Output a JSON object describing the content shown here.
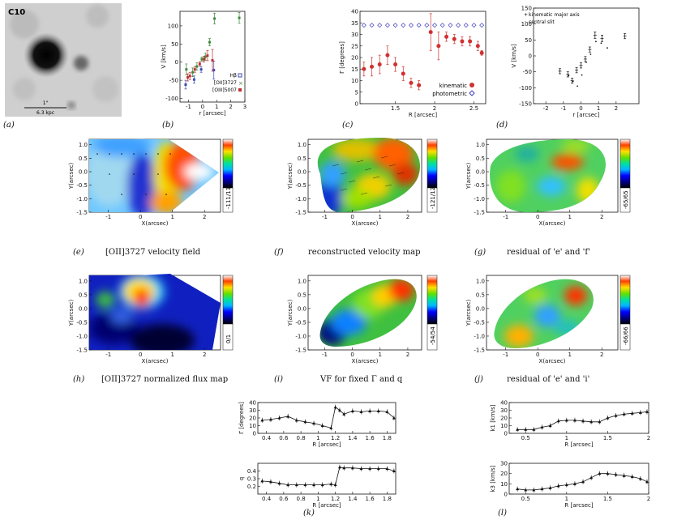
{
  "panel_a": {
    "object_label": "C10",
    "scale_top": "1\"",
    "scale_bottom": "6.3 kpc",
    "caption": "(a)"
  },
  "captions": {
    "b": "(b)",
    "c": "(c)",
    "d": "(d)",
    "e": "(e)",
    "f": "(f)",
    "g": "(g)",
    "h": "(h)",
    "i": "(i)",
    "j": "(j)",
    "k": "(k)",
    "l": "(l)"
  },
  "titles": {
    "e": "[OII]3727 velocity field",
    "f": "reconstructed velocity map",
    "g": "residual of 'e' and 'f'",
    "h": "[OII]3727 normalized flux map",
    "i": "VF for fixed Γ and q",
    "j": "residual of 'e' and 'i'"
  },
  "colorbars": {
    "e": "-111/111",
    "f": "-121/121",
    "g": "-65/65",
    "h": "0/1",
    "i": "-54/54",
    "j": "-66/66"
  },
  "map_axes": {
    "xlabel": "X(arcsec)",
    "ylabel": "Y(arcsec)",
    "xticks": [
      "-1",
      "0",
      "1",
      "2"
    ],
    "yticks": [
      "1.0",
      "0.5",
      "0.0",
      "-0.5",
      "-1.0",
      "-1.5"
    ]
  },
  "chart_data": [
    {
      "id": "b",
      "type": "scatter",
      "xlabel": "r [arcsec]",
      "ylabel": "V [km/s]",
      "xlim": [
        -1.6,
        3.0
      ],
      "ylim": [
        -110,
        140
      ],
      "xticks": [
        -1,
        0,
        1,
        2,
        3
      ],
      "yticks": [
        -100,
        -50,
        0,
        50,
        100
      ],
      "legend_position": "bottom-right",
      "series": [
        {
          "name": "Hβ",
          "color": "#3b4bb0",
          "points": [
            [
              -1.2,
              -62,
              12
            ],
            [
              -0.6,
              -48,
              10
            ],
            [
              -0.1,
              -20,
              8
            ],
            [
              0.8,
              -22,
              25
            ]
          ]
        },
        {
          "name": "[OII]3727",
          "color": "#3d8a3d",
          "points": [
            [
              -1.15,
              -20,
              15
            ],
            [
              -0.7,
              -28,
              12
            ],
            [
              -0.4,
              -12,
              10
            ],
            [
              -0.05,
              8,
              6
            ],
            [
              0.2,
              15,
              10
            ],
            [
              0.5,
              55,
              10
            ],
            [
              0.85,
              120,
              15
            ],
            [
              2.6,
              122,
              15
            ]
          ]
        },
        {
          "name": "[OIII]5007",
          "color": "#c03030",
          "points": [
            [
              -1.05,
              -42,
              10
            ],
            [
              -0.9,
              -38,
              10
            ],
            [
              -0.55,
              -20,
              8
            ],
            [
              -0.2,
              -5,
              6
            ],
            [
              0.1,
              8,
              8
            ],
            [
              0.35,
              18,
              14
            ],
            [
              0.7,
              5,
              30
            ]
          ]
        }
      ]
    },
    {
      "id": "c",
      "type": "scatter",
      "xlabel": "R [arcsec]",
      "ylabel": "Γ [degrees]",
      "xlim": [
        1.05,
        2.65
      ],
      "ylim": [
        0,
        40
      ],
      "xticks": [
        1.5,
        2.0,
        2.5
      ],
      "yticks": [
        0,
        5,
        10,
        15,
        20,
        25,
        30,
        35,
        40
      ],
      "legend_position": "bottom-right",
      "series": [
        {
          "name": "kinematic",
          "color": "#d03030",
          "points": [
            [
              1.1,
              15,
              3
            ],
            [
              1.2,
              16,
              4
            ],
            [
              1.3,
              17,
              4
            ],
            [
              1.4,
              21,
              4
            ],
            [
              1.5,
              17,
              3
            ],
            [
              1.6,
              13,
              3
            ],
            [
              1.7,
              9,
              2
            ],
            [
              1.8,
              8,
              2
            ],
            [
              1.95,
              31,
              8
            ],
            [
              2.05,
              25,
              6
            ],
            [
              2.15,
              29,
              2
            ],
            [
              2.25,
              28,
              2
            ],
            [
              2.35,
              27,
              2
            ],
            [
              2.45,
              27,
              2
            ],
            [
              2.55,
              25,
              2
            ],
            [
              2.6,
              22,
              1
            ]
          ]
        },
        {
          "name": "photometric",
          "color": "#4040c0",
          "x": [
            1.1,
            1.2,
            1.3,
            1.4,
            1.5,
            1.6,
            1.7,
            1.8,
            1.9,
            2.0,
            2.1,
            2.2,
            2.3,
            2.4,
            2.5,
            2.6
          ],
          "y": [
            34,
            34,
            34,
            34,
            34,
            34,
            34,
            34,
            34,
            34,
            34,
            34,
            34,
            34,
            34,
            34
          ]
        }
      ]
    },
    {
      "id": "d",
      "type": "scatter",
      "xlabel": "r [arcsec]",
      "ylabel": "V [km/s]",
      "xlim": [
        -2.7,
        3.3
      ],
      "ylim": [
        -150,
        150
      ],
      "xticks": [
        -2,
        -1,
        0,
        1,
        2
      ],
      "yticks": [
        -150,
        -100,
        -50,
        0,
        50,
        100,
        150
      ],
      "legend_position": "top-left",
      "legend": [
        "kinematic major axis",
        "central slit"
      ],
      "series": [
        {
          "name": "kinematic major axis",
          "color": "#111",
          "points": [
            [
              -1.2,
              -48,
              8
            ],
            [
              -0.75,
              -58,
              8
            ],
            [
              -0.5,
              -78,
              8
            ],
            [
              -0.25,
              -45,
              8
            ],
            [
              0.0,
              -30,
              8
            ],
            [
              0.25,
              -10,
              8
            ],
            [
              0.5,
              20,
              8
            ],
            [
              0.8,
              65,
              10
            ],
            [
              1.2,
              55,
              10
            ],
            [
              2.5,
              62,
              8
            ]
          ]
        },
        {
          "name": "central slit",
          "color": "#111",
          "points": [
            [
              -0.7,
              -62
            ],
            [
              -0.45,
              -80
            ],
            [
              -0.2,
              -95
            ],
            [
              0.05,
              -60
            ],
            [
              0.3,
              -20
            ],
            [
              0.55,
              5
            ],
            [
              0.85,
              45
            ],
            [
              1.15,
              40
            ],
            [
              1.5,
              25
            ]
          ]
        }
      ]
    },
    {
      "id": "k_top",
      "type": "line",
      "xlabel": "R [arcsec]",
      "ylabel": "Γ [degrees]",
      "xlim": [
        0.3,
        1.9
      ],
      "ylim": [
        0,
        40
      ],
      "xticks": [
        0.4,
        0.6,
        0.8,
        1.0,
        1.2,
        1.4,
        1.6,
        1.8
      ],
      "yticks": [
        0,
        10,
        20,
        30,
        40
      ],
      "x": [
        0.35,
        0.45,
        0.55,
        0.65,
        0.75,
        0.85,
        0.95,
        1.05,
        1.15,
        1.2,
        1.25,
        1.3,
        1.4,
        1.5,
        1.6,
        1.7,
        1.8,
        1.88
      ],
      "y": [
        17,
        18,
        20,
        22,
        17,
        15,
        13,
        10,
        7,
        34,
        30,
        25,
        29,
        28,
        29,
        29,
        28,
        20
      ]
    },
    {
      "id": "k_bottom",
      "type": "line",
      "xlabel": "R [arcsec]",
      "ylabel": "q",
      "xlim": [
        0.3,
        1.9
      ],
      "ylim": [
        0.1,
        0.5
      ],
      "xticks": [
        0.4,
        0.6,
        0.8,
        1.0,
        1.2,
        1.4,
        1.6,
        1.8
      ],
      "yticks": [
        0.2,
        0.3,
        0.4
      ],
      "x": [
        0.35,
        0.45,
        0.55,
        0.65,
        0.75,
        0.85,
        0.95,
        1.05,
        1.15,
        1.2,
        1.25,
        1.3,
        1.4,
        1.5,
        1.6,
        1.7,
        1.8,
        1.88
      ],
      "y": [
        0.27,
        0.26,
        0.24,
        0.22,
        0.22,
        0.22,
        0.22,
        0.22,
        0.23,
        0.22,
        0.45,
        0.44,
        0.44,
        0.43,
        0.43,
        0.43,
        0.43,
        0.4
      ]
    },
    {
      "id": "l_top",
      "type": "line",
      "xlabel": "R [arcsec]",
      "ylabel": "k1 [km/s]",
      "xlim": [
        0.3,
        2.0
      ],
      "ylim": [
        0,
        40
      ],
      "xticks": [
        0.5,
        1.0,
        1.5,
        2.0
      ],
      "yticks": [
        0,
        10,
        20,
        30,
        40
      ],
      "x": [
        0.4,
        0.5,
        0.6,
        0.7,
        0.8,
        0.9,
        1.0,
        1.1,
        1.2,
        1.3,
        1.4,
        1.5,
        1.6,
        1.7,
        1.8,
        1.9,
        1.98
      ],
      "y": [
        5,
        5,
        5,
        8,
        10,
        16,
        17,
        17,
        16,
        15,
        15,
        20,
        23,
        25,
        26,
        27,
        28
      ]
    },
    {
      "id": "l_bottom",
      "type": "line",
      "xlabel": "R [arcsec]",
      "ylabel": "k3 [km/s]",
      "xlim": [
        0.3,
        2.0
      ],
      "ylim": [
        0,
        30
      ],
      "xticks": [
        0.5,
        1.0,
        1.5,
        2.0
      ],
      "yticks": [
        0,
        10,
        20,
        30
      ],
      "x": [
        0.4,
        0.5,
        0.6,
        0.7,
        0.8,
        0.9,
        1.0,
        1.1,
        1.2,
        1.3,
        1.4,
        1.5,
        1.6,
        1.7,
        1.8,
        1.9,
        1.98
      ],
      "y": [
        5,
        4,
        4,
        5,
        6,
        8,
        9,
        10,
        12,
        16,
        20,
        20,
        19,
        18,
        17,
        15,
        12
      ]
    }
  ]
}
